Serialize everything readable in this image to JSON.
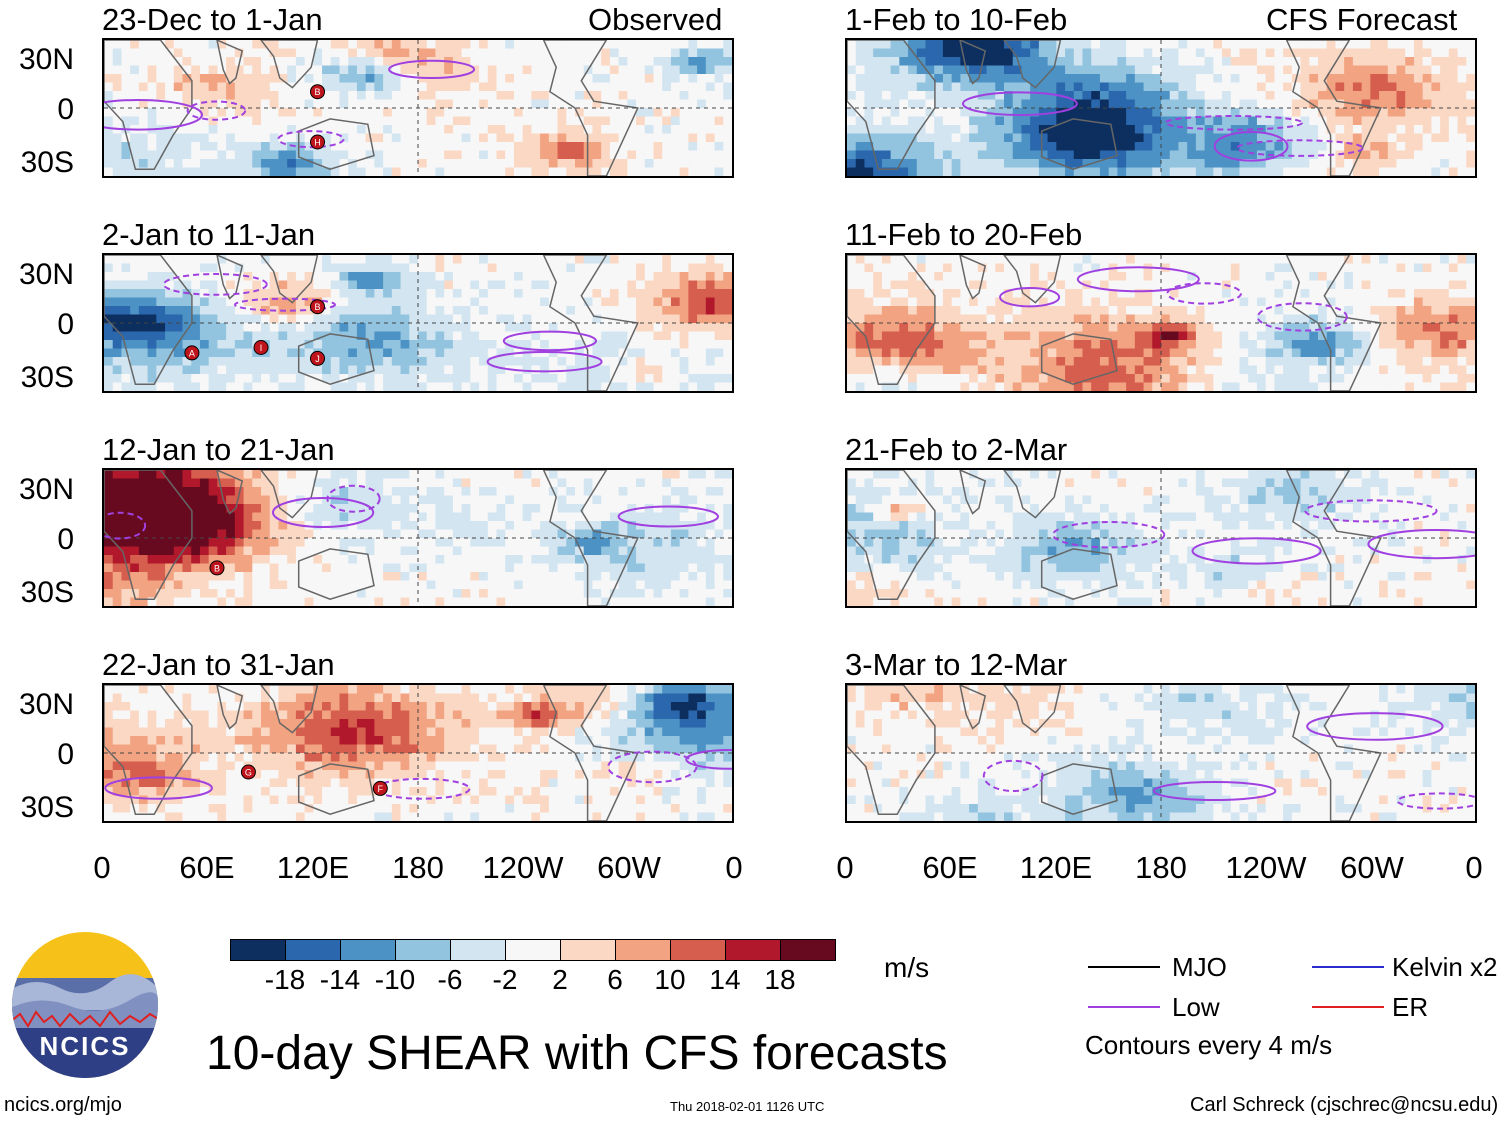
{
  "title": "10-day SHEAR with CFS forecasts",
  "left_header": "Observed",
  "right_header": "CFS Forecast",
  "y_ticks": [
    "30N",
    "0",
    "30S"
  ],
  "x_ticks": [
    "0",
    "60E",
    "120E",
    "180",
    "120W",
    "60W",
    "0"
  ],
  "panels_observed": [
    "23-Dec to 1-Jan",
    "2-Jan to 11-Jan",
    "12-Jan to 21-Jan",
    "22-Jan to 31-Jan"
  ],
  "panels_forecast": [
    "1-Feb to 10-Feb",
    "11-Feb to 20-Feb",
    "21-Feb to 2-Mar",
    "3-Mar to 12-Mar"
  ],
  "colorbar": {
    "unit": "m/s",
    "labels": [
      "-18",
      "-14",
      "-10",
      "-6",
      "-2",
      "2",
      "6",
      "10",
      "14",
      "18"
    ],
    "colors": [
      "#0d2f60",
      "#2a67ad",
      "#4c92c4",
      "#92c3df",
      "#d2e5f0",
      "#f7f7f7",
      "#fbd8c4",
      "#f2a382",
      "#d65e4e",
      "#b1182b",
      "#680a1f"
    ]
  },
  "legend": {
    "mjo": "MJO",
    "kelvin": "Kelvin x2",
    "low": "Low",
    "er": "ER",
    "contours_note": "Contours every 4 m/s",
    "colors": {
      "mjo": "#000000",
      "kelvin": "#2a2ad0",
      "low": "#a040e0",
      "er": "#e02020"
    }
  },
  "logo_text": "NCICS",
  "footer": {
    "url": "ncics.org/mjo",
    "timestamp": "Thu 2018-02-01 1126 UTC",
    "credit": "Carl Schreck (cjschrec@ncsu.edu)"
  },
  "storm_markers": [
    {
      "panel": 0,
      "labels": [
        "B",
        "H"
      ]
    },
    {
      "panel": 1,
      "labels": [
        "B",
        "A",
        "I",
        "J"
      ]
    },
    {
      "panel": 2,
      "labels": [
        "B"
      ]
    },
    {
      "panel": 3,
      "labels": [
        "G",
        "F"
      ]
    }
  ],
  "chart_data": {
    "type": "heatmap",
    "variable": "10-day vertical wind shear anomaly",
    "unit": "m/s",
    "x_axis": {
      "ticks": [
        "0",
        "60E",
        "120E",
        "180",
        "120W",
        "60W",
        "0"
      ],
      "range_deg_east": [
        0,
        360
      ]
    },
    "y_axis": {
      "ticks": [
        "30N",
        "0",
        "30S"
      ],
      "range_deg": [
        -40,
        40
      ]
    },
    "color_levels": [
      -18,
      -14,
      -10,
      -6,
      -2,
      2,
      6,
      10,
      14,
      18
    ],
    "contour_interval": 4
  }
}
